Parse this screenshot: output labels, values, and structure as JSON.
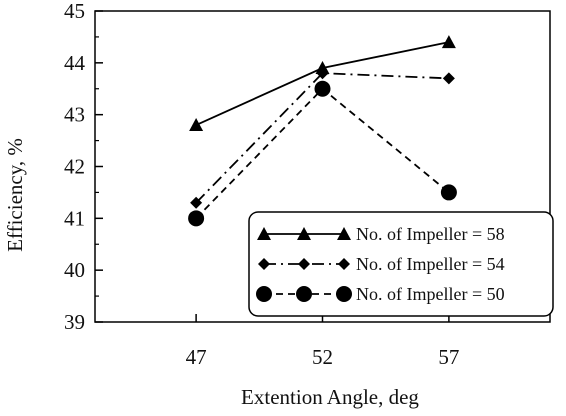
{
  "chart_data": {
    "type": "line",
    "title": "",
    "xlabel": "Extention Angle, deg",
    "ylabel": "Efficiency, %",
    "x": [
      47,
      52,
      57
    ],
    "xlim": [
      43,
      61
    ],
    "ylim": [
      39,
      45
    ],
    "xticks": [
      "47",
      "52",
      "57"
    ],
    "yticks": [
      "39",
      "40",
      "41",
      "42",
      "43",
      "44",
      "45"
    ],
    "grid": false,
    "legend_position": "bottom-right",
    "series": [
      {
        "name": "No. of Impeller = 58",
        "marker": "triangle",
        "line_style": "solid",
        "values": [
          42.8,
          43.9,
          44.4
        ]
      },
      {
        "name": "No. of Impeller = 54",
        "marker": "diamond",
        "line_style": "dashdot",
        "values": [
          41.3,
          43.8,
          43.7
        ]
      },
      {
        "name": "No. of Impeller = 50",
        "marker": "circle",
        "line_style": "dashed",
        "values": [
          41.0,
          43.5,
          41.5
        ]
      }
    ]
  }
}
